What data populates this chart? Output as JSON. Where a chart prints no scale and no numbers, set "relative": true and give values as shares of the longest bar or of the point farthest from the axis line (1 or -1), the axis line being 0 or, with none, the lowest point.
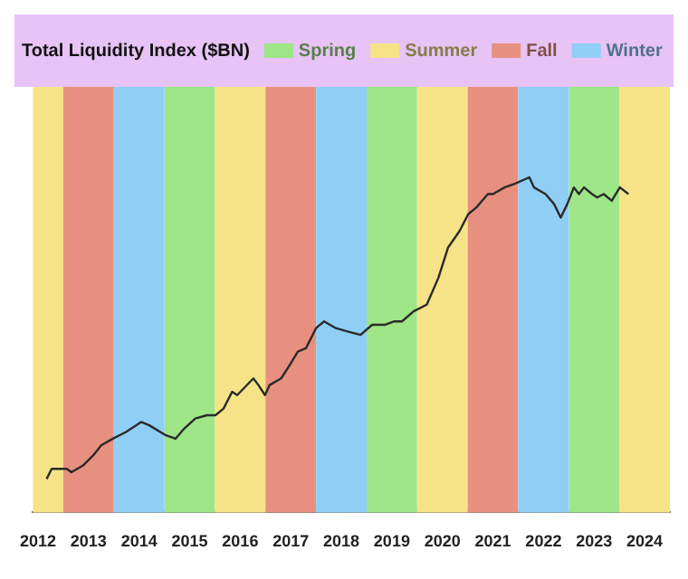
{
  "chart_data": {
    "type": "line",
    "title": "Total Liquidity Index ($BN)",
    "relative": true,
    "legend": "top",
    "xlim": [
      2012.4,
      2025
    ],
    "xticks": [
      {
        "value": 2012.5,
        "label": "2012"
      },
      {
        "value": 2013.5,
        "label": "2013"
      },
      {
        "value": 2014.5,
        "label": "2014"
      },
      {
        "value": 2015.5,
        "label": "2015"
      },
      {
        "value": 2016.5,
        "label": "2016"
      },
      {
        "value": 2017.5,
        "label": "2017"
      },
      {
        "value": 2018.5,
        "label": "2018"
      },
      {
        "value": 2019.5,
        "label": "2019"
      },
      {
        "value": 2020.5,
        "label": "2020"
      },
      {
        "value": 2021.5,
        "label": "2021"
      },
      {
        "value": 2022.5,
        "label": "2022"
      },
      {
        "value": 2023.5,
        "label": "2023"
      },
      {
        "value": 2024.5,
        "label": "2024"
      }
    ],
    "x": [
      2012.67,
      2012.77,
      2013.07,
      2013.16,
      2013.39,
      2013.59,
      2013.75,
      2013.98,
      2014.24,
      2014.54,
      2014.7,
      2015.03,
      2015.22,
      2015.39,
      2015.61,
      2015.84,
      2016.01,
      2016.17,
      2016.34,
      2016.44,
      2016.76,
      2016.86,
      2016.99,
      2017.08,
      2017.31,
      2017.48,
      2017.64,
      2017.8,
      2018.0,
      2018.16,
      2018.39,
      2018.62,
      2018.88,
      2019.11,
      2019.37,
      2019.54,
      2019.7,
      2019.93,
      2020.19,
      2020.42,
      2020.61,
      2020.84,
      2021.01,
      2021.17,
      2021.4,
      2021.5,
      2021.73,
      2021.92,
      2022.22,
      2022.31,
      2022.54,
      2022.71,
      2022.84,
      2022.97,
      2023.1,
      2023.2,
      2023.3,
      2023.46,
      2023.56,
      2023.69,
      2023.85,
      2024.01,
      2024.18
    ],
    "series": [
      {
        "color": "#2a2a2a",
        "values": [
          0.1,
          0.13,
          0.13,
          0.12,
          0.14,
          0.17,
          0.2,
          0.22,
          0.24,
          0.27,
          0.26,
          0.23,
          0.22,
          0.25,
          0.28,
          0.29,
          0.29,
          0.31,
          0.36,
          0.35,
          0.4,
          0.38,
          0.35,
          0.38,
          0.4,
          0.44,
          0.48,
          0.49,
          0.55,
          0.57,
          0.55,
          0.54,
          0.53,
          0.56,
          0.56,
          0.57,
          0.57,
          0.6,
          0.62,
          0.7,
          0.79,
          0.84,
          0.89,
          0.91,
          0.95,
          0.95,
          0.97,
          0.98,
          1,
          0.97,
          0.95,
          0.92,
          0.88,
          0.92,
          0.97,
          0.95,
          0.97,
          0.95,
          0.94,
          0.95,
          0.93,
          0.97,
          0.95
        ]
      }
    ],
    "bands": [
      {
        "axis": "x",
        "from": 2015,
        "to": 2016,
        "label": "Spring",
        "color": "#9ee687"
      },
      {
        "axis": "x",
        "from": 2019,
        "to": 2020,
        "color": "#9ee687"
      },
      {
        "axis": "x",
        "from": 2023,
        "to": 2024,
        "color": "#9ee687"
      },
      {
        "axis": "x",
        "from": 2012.4,
        "to": 2013,
        "label": "Summer",
        "color": "#f6e387"
      },
      {
        "axis": "x",
        "from": 2016,
        "to": 2017,
        "color": "#f6e387"
      },
      {
        "axis": "x",
        "from": 2020,
        "to": 2021,
        "color": "#f6e387"
      },
      {
        "axis": "x",
        "from": 2024,
        "to": 2025,
        "color": "#f6e387"
      },
      {
        "axis": "x",
        "from": 2013,
        "to": 2014,
        "label": "Fall",
        "color": "#e8907f"
      },
      {
        "axis": "x",
        "from": 2017,
        "to": 2018,
        "color": "#e8907f"
      },
      {
        "axis": "x",
        "from": 2021,
        "to": 2022,
        "color": "#e8907f"
      },
      {
        "axis": "x",
        "from": 2014,
        "to": 2015,
        "label": "Winter",
        "color": "#8fcff5"
      },
      {
        "axis": "x",
        "from": 2018,
        "to": 2019,
        "color": "#8fcff5"
      },
      {
        "axis": "x",
        "from": 2022,
        "to": 2023,
        "color": "#8fcff5"
      }
    ]
  }
}
